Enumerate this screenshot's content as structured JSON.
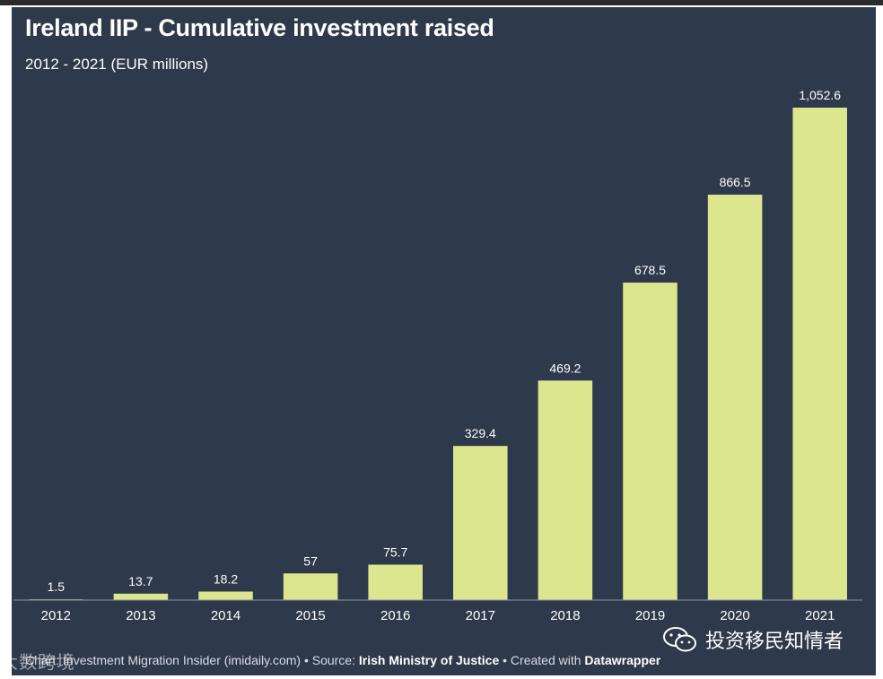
{
  "title": "Ireland IIP - Cumulative investment raised",
  "subtitle": "2012 - 2021 (EUR millions)",
  "footer": {
    "prefix": "Chart: Investment Migration Insider (imidaily.com) • Source: ",
    "source": "Irish Ministry of Justice",
    "middle": " • Created with ",
    "tool": "Datawrapper"
  },
  "watermark_left": "大数跨境",
  "watermark_right": "投资移民知情者",
  "colors": {
    "background": "#2e394b",
    "bar": "#dce68e",
    "text": "#ffffff",
    "axis": "#8a93a3"
  },
  "chart_data": {
    "type": "bar",
    "title": "Ireland IIP - Cumulative investment raised",
    "subtitle": "2012 - 2021 (EUR millions)",
    "categories": [
      "2012",
      "2013",
      "2014",
      "2015",
      "2016",
      "2017",
      "2018",
      "2019",
      "2020",
      "2021"
    ],
    "values": [
      1.5,
      13.7,
      18.2,
      57,
      75.7,
      329.4,
      469.2,
      678.5,
      866.5,
      1052.6
    ],
    "value_labels": [
      "1.5",
      "13.7",
      "18.2",
      "57",
      "75.7",
      "329.4",
      "469.2",
      "678.5",
      "866.5",
      "1,052.6"
    ],
    "xlabel": "",
    "ylabel": "",
    "ylim": [
      0,
      1052.6
    ],
    "grid": false,
    "legend": "none"
  }
}
